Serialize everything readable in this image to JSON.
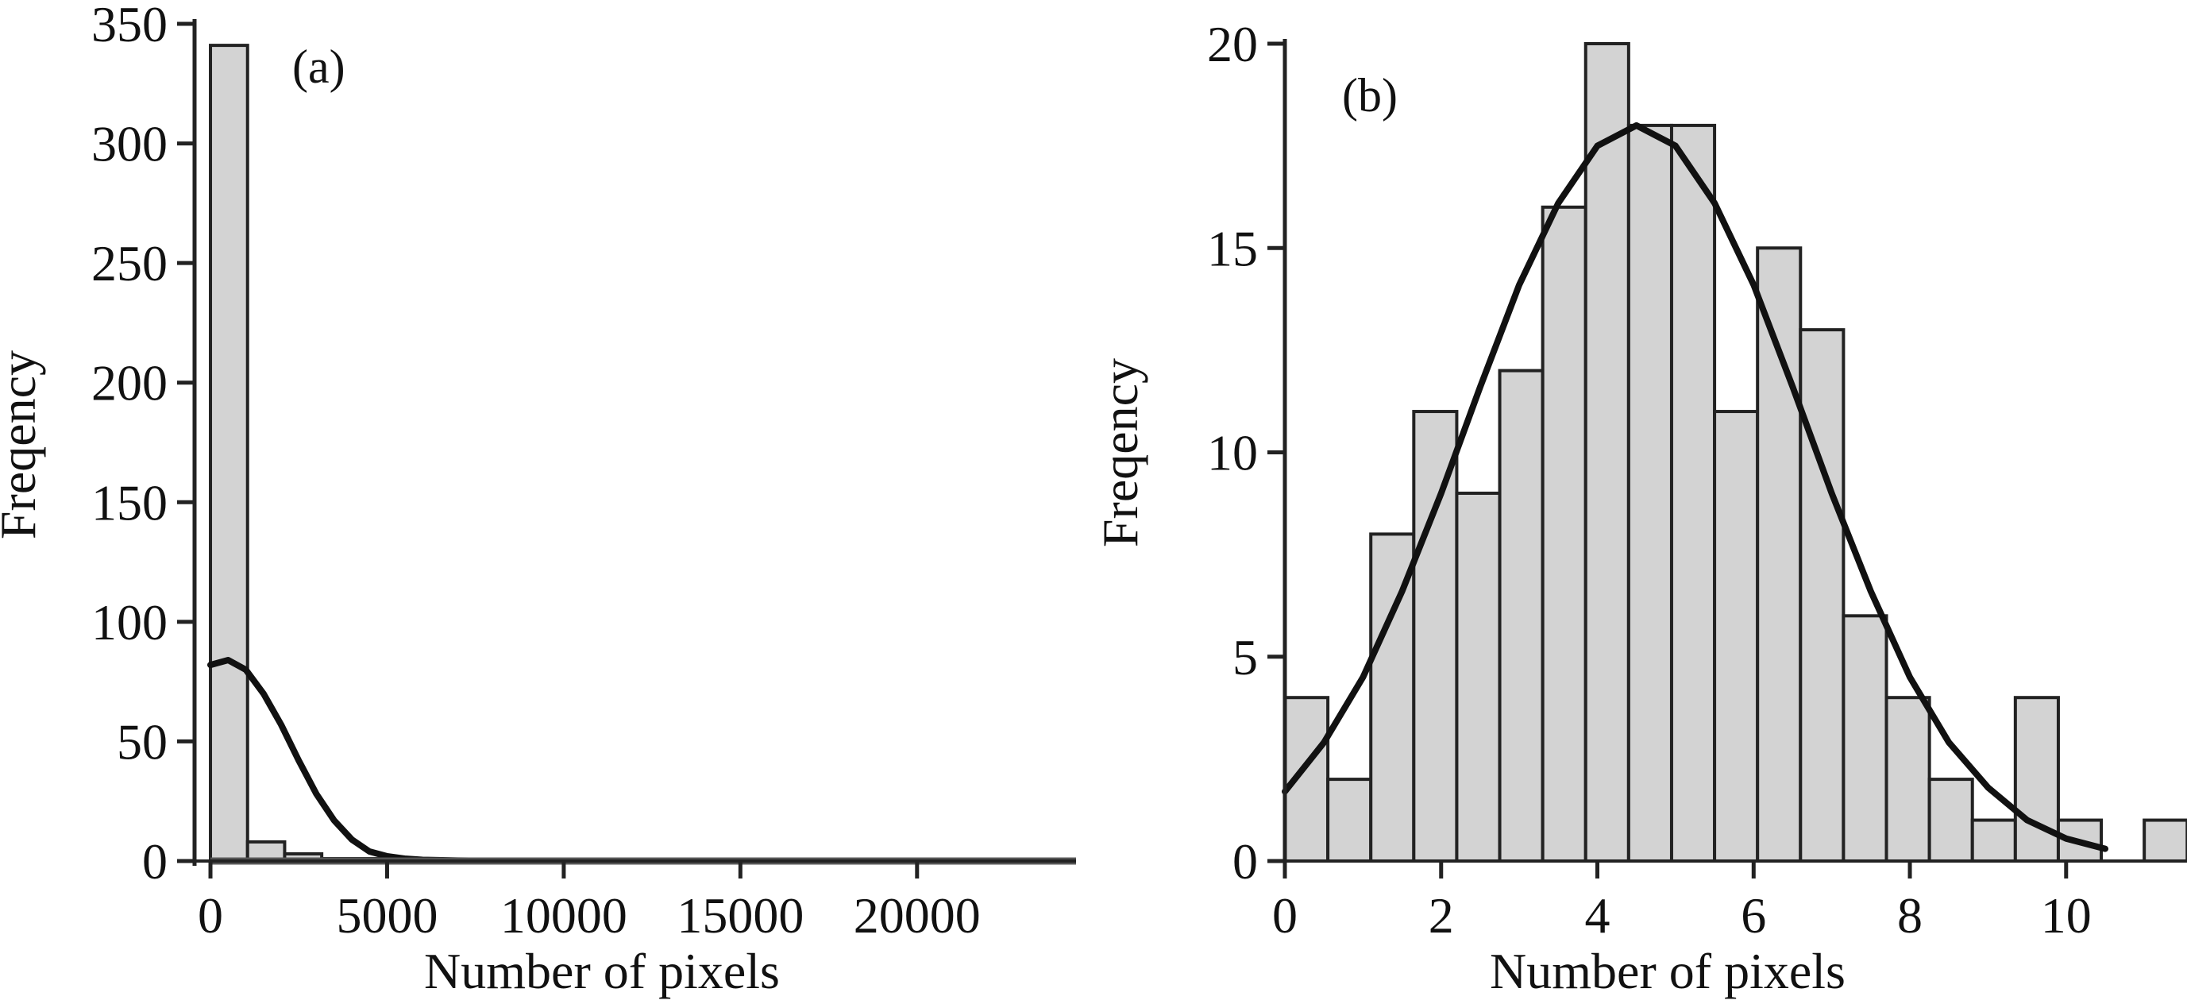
{
  "chart_data": [
    {
      "type": "bar",
      "panel_label": "(a)",
      "xlabel": "Number of pixels",
      "ylabel": "Freqency",
      "xlim": [
        -450,
        24500
      ],
      "ylim": [
        0,
        350
      ],
      "x_ticks": [
        0,
        5000,
        10000,
        15000,
        20000
      ],
      "x_tick_labels": [
        "0",
        "5000",
        "10000",
        "15000",
        "20000"
      ],
      "y_ticks": [
        0,
        50,
        100,
        150,
        200,
        250,
        300,
        350
      ],
      "y_tick_labels": [
        "0",
        "50",
        "100",
        "150",
        "200",
        "250",
        "300",
        "350"
      ],
      "bin_width": 1050,
      "bins": [
        {
          "x0": 0,
          "x1": 1050,
          "value": 341
        },
        {
          "x0": 1050,
          "x1": 2100,
          "value": 8
        },
        {
          "x0": 2100,
          "x1": 3150,
          "value": 3
        },
        {
          "x0": 3150,
          "x1": 4200,
          "value": 1
        },
        {
          "x0": 4200,
          "x1": 5250,
          "value": 1
        },
        {
          "x0": 5250,
          "x1": 6300,
          "value": 1
        },
        {
          "x0": 6300,
          "x1": 7350,
          "value": 0
        },
        {
          "x0": 7350,
          "x1": 8400,
          "value": 0
        },
        {
          "x0": 8400,
          "x1": 9450,
          "value": 0
        },
        {
          "x0": 9450,
          "x1": 10500,
          "value": 0
        },
        {
          "x0": 10500,
          "x1": 11550,
          "value": 0
        },
        {
          "x0": 11550,
          "x1": 12600,
          "value": 0
        },
        {
          "x0": 12600,
          "x1": 13650,
          "value": 0
        },
        {
          "x0": 13650,
          "x1": 14700,
          "value": 0
        },
        {
          "x0": 14700,
          "x1": 15750,
          "value": 0
        },
        {
          "x0": 15750,
          "x1": 16800,
          "value": 0
        },
        {
          "x0": 16800,
          "x1": 17850,
          "value": 0
        },
        {
          "x0": 17850,
          "x1": 18900,
          "value": 0
        },
        {
          "x0": 18900,
          "x1": 19950,
          "value": 0
        },
        {
          "x0": 19950,
          "x1": 21000,
          "value": 0
        },
        {
          "x0": 21000,
          "x1": 22050,
          "value": 0
        },
        {
          "x0": 22050,
          "x1": 23100,
          "value": 0
        },
        {
          "x0": 23100,
          "x1": 24150,
          "value": 0
        }
      ],
      "fit_curve": {
        "type": "normal",
        "x": [
          0,
          500,
          1000,
          1500,
          2000,
          2500,
          3000,
          3500,
          4000,
          4500,
          5000,
          5500,
          6000,
          7000,
          8000,
          10000,
          15000,
          20000,
          24000
        ],
        "y": [
          82,
          84,
          80,
          70,
          57,
          42,
          28,
          17,
          9,
          4,
          2,
          1,
          0.5,
          0.2,
          0.1,
          0,
          0,
          0,
          0
        ]
      },
      "grid": false,
      "legend": "none",
      "colors": {
        "bar_fill": "#d3d3d3",
        "bar_stroke": "#222222",
        "curve": "#111111",
        "axis": "#222222",
        "baseline": "#555555"
      }
    },
    {
      "type": "bar",
      "panel_label": "(b)",
      "xlabel": "Number of pixels",
      "ylabel": "Freqency",
      "xlim": [
        0,
        11.1
      ],
      "ylim": [
        0,
        20
      ],
      "x_ticks": [
        0,
        2,
        4,
        6,
        8,
        10
      ],
      "x_tick_labels": [
        "0",
        "2",
        "4",
        "6",
        "8",
        "10"
      ],
      "y_ticks": [
        0,
        5,
        10,
        15,
        20
      ],
      "y_tick_labels": [
        "0",
        "5",
        "10",
        "15",
        "20"
      ],
      "bin_width": 0.55,
      "bins": [
        {
          "x0": 0.0,
          "x1": 0.55,
          "value": 4
        },
        {
          "x0": 0.55,
          "x1": 1.1,
          "value": 2
        },
        {
          "x0": 1.1,
          "x1": 1.65,
          "value": 8
        },
        {
          "x0": 1.65,
          "x1": 2.2,
          "value": 11
        },
        {
          "x0": 2.2,
          "x1": 2.75,
          "value": 9
        },
        {
          "x0": 2.75,
          "x1": 3.3,
          "value": 12
        },
        {
          "x0": 3.3,
          "x1": 3.85,
          "value": 16
        },
        {
          "x0": 3.85,
          "x1": 4.4,
          "value": 20
        },
        {
          "x0": 4.4,
          "x1": 4.95,
          "value": 18
        },
        {
          "x0": 4.95,
          "x1": 5.5,
          "value": 18
        },
        {
          "x0": 5.5,
          "x1": 6.05,
          "value": 11
        },
        {
          "x0": 6.05,
          "x1": 6.6,
          "value": 15
        },
        {
          "x0": 6.6,
          "x1": 7.15,
          "value": 13
        },
        {
          "x0": 7.15,
          "x1": 7.7,
          "value": 6
        },
        {
          "x0": 7.7,
          "x1": 8.25,
          "value": 4
        },
        {
          "x0": 8.25,
          "x1": 8.8,
          "value": 2
        },
        {
          "x0": 8.8,
          "x1": 9.35,
          "value": 1
        },
        {
          "x0": 9.35,
          "x1": 9.9,
          "value": 4
        },
        {
          "x0": 9.9,
          "x1": 10.45,
          "value": 1
        },
        {
          "x0": 10.45,
          "x1": 11.0,
          "value": 0
        },
        {
          "x0": 11.0,
          "x1": 11.55,
          "value": 1
        }
      ],
      "fit_curve": {
        "type": "normal",
        "x": [
          0,
          0.5,
          1,
          1.5,
          2,
          2.5,
          3,
          3.5,
          4,
          4.5,
          5,
          5.5,
          6,
          6.5,
          7,
          7.5,
          8,
          8.5,
          9,
          9.5,
          10,
          10.5
        ],
        "y": [
          1.7,
          2.9,
          4.5,
          6.6,
          9.0,
          11.6,
          14.1,
          16.1,
          17.5,
          18.0,
          17.5,
          16.1,
          14.1,
          11.6,
          9.0,
          6.6,
          4.5,
          2.9,
          1.8,
          1.0,
          0.55,
          0.3
        ]
      },
      "grid": false,
      "legend": "none",
      "colors": {
        "bar_fill": "#d3d3d3",
        "bar_stroke": "#222222",
        "curve": "#111111",
        "axis": "#222222"
      }
    }
  ]
}
